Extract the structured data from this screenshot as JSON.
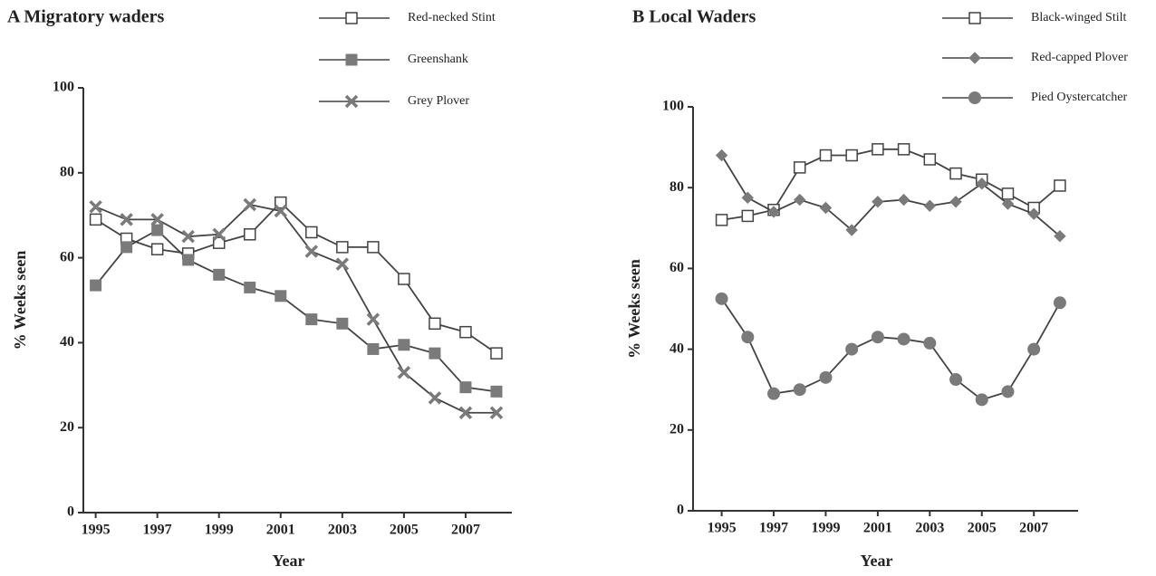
{
  "chart_data": [
    {
      "type": "line",
      "title": "A  Migratory waders",
      "x_label": "Year",
      "y_label": "% Weeks seen",
      "x": [
        1995,
        1996,
        1997,
        1998,
        1999,
        2000,
        2001,
        2002,
        2003,
        2004,
        2005,
        2006,
        2007,
        2008
      ],
      "xlim": [
        1994.6,
        2008.5
      ],
      "xticks": [
        1995,
        1997,
        1999,
        2001,
        2003,
        2005,
        2007
      ],
      "ylim": [
        0,
        100
      ],
      "yticks": [
        0,
        20,
        40,
        60,
        80,
        100
      ],
      "series": [
        {
          "name": "Red-necked Stint",
          "color": "#444444",
          "marker": "square-open",
          "values": [
            69,
            64.5,
            62,
            61,
            63.5,
            65.5,
            73,
            66,
            62.5,
            62.5,
            55,
            44.5,
            42.5,
            37.5
          ]
        },
        {
          "name": "Greenshank",
          "color": "#444444",
          "marker": "square-filled",
          "values": [
            53.5,
            62.5,
            66.5,
            59.5,
            56,
            53,
            51,
            45.5,
            44.5,
            38.5,
            39.5,
            37.5,
            29.5,
            28.5
          ]
        },
        {
          "name": "Grey Plover",
          "color": "#444444",
          "marker": "cross",
          "values": [
            72,
            69,
            69,
            65,
            65.5,
            72.5,
            71,
            61.5,
            58.5,
            45.5,
            33,
            27,
            23.5,
            23.5
          ]
        }
      ]
    },
    {
      "type": "line",
      "title": "B  Local Waders",
      "x_label": "Year",
      "y_label": "% Weeks seen",
      "x": [
        1995,
        1996,
        1997,
        1998,
        1999,
        2000,
        2001,
        2002,
        2003,
        2004,
        2005,
        2006,
        2007,
        2008
      ],
      "xlim": [
        1993.9,
        2008.7
      ],
      "xticks": [
        1995,
        1997,
        1999,
        2001,
        2003,
        2005,
        2007
      ],
      "ylim": [
        0,
        100
      ],
      "yticks": [
        0,
        20,
        40,
        60,
        80,
        100
      ],
      "series": [
        {
          "name": "Black-winged Stilt",
          "color": "#444444",
          "marker": "square-open",
          "values": [
            72,
            73,
            74.5,
            85,
            88,
            88,
            89.5,
            89.5,
            87,
            83.5,
            82,
            78.5,
            75,
            80.5
          ]
        },
        {
          "name": "Red-capped Plover",
          "color": "#444444",
          "marker": "diamond",
          "values": [
            88,
            77.5,
            74,
            77,
            75,
            69.5,
            76.5,
            77,
            75.5,
            76.5,
            81,
            76,
            73.5,
            68
          ]
        },
        {
          "name": "Pied Oystercatcher",
          "color": "#444444",
          "marker": "circle",
          "values": [
            52.5,
            43,
            29,
            30,
            33,
            40,
            43,
            42.5,
            41.5,
            32.5,
            27.5,
            29.5,
            40,
            51.5
          ]
        }
      ]
    }
  ]
}
